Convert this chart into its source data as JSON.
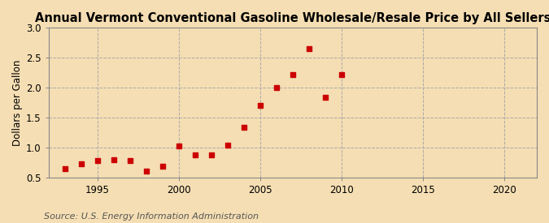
{
  "title": "Annual Vermont Conventional Gasoline Wholesale/Resale Price by All Sellers",
  "ylabel": "Dollars per Gallon",
  "source": "Source: U.S. Energy Information Administration",
  "background_color": "#f5deb3",
  "plot_bg_color": "#f5deb3",
  "marker_color": "#cc0000",
  "years": [
    1993,
    1994,
    1995,
    1996,
    1997,
    1998,
    1999,
    2000,
    2001,
    2002,
    2003,
    2004,
    2005,
    2006,
    2007,
    2008,
    2009,
    2010
  ],
  "values": [
    0.65,
    0.72,
    0.78,
    0.8,
    0.78,
    0.6,
    0.68,
    1.02,
    0.88,
    0.87,
    1.04,
    1.33,
    1.7,
    2.0,
    2.21,
    2.65,
    1.84,
    2.22
  ],
  "xlim": [
    1992,
    2022
  ],
  "ylim": [
    0.5,
    3.0
  ],
  "xticks": [
    1995,
    2000,
    2005,
    2010,
    2015,
    2020
  ],
  "yticks": [
    0.5,
    1.0,
    1.5,
    2.0,
    2.5,
    3.0
  ],
  "vgrid_positions": [
    1995,
    2000,
    2005,
    2010,
    2015,
    2020
  ],
  "hgrid_positions": [
    0.5,
    1.0,
    1.5,
    2.0,
    2.5,
    3.0
  ],
  "grid_color": "#aaaaaa",
  "title_fontsize": 10.5,
  "label_fontsize": 8.5,
  "tick_fontsize": 8.5,
  "source_fontsize": 8
}
